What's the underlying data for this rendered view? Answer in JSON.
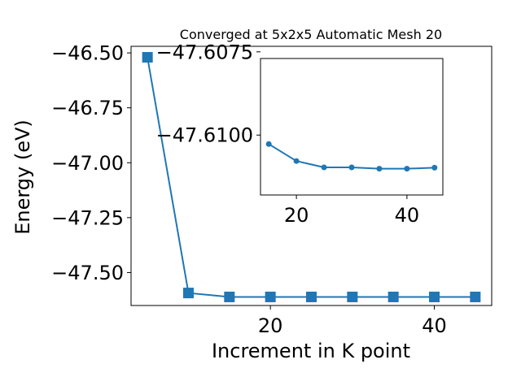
{
  "chart_data": [
    {
      "type": "line",
      "title": "Converged at 5x2x5 Automatic Mesh 20",
      "xlabel": "Increment in K point",
      "ylabel": "Energy (eV)",
      "x": [
        5,
        10,
        15,
        20,
        25,
        30,
        35,
        40,
        45
      ],
      "y": [
        -46.52,
        -47.593,
        -47.611,
        -47.611,
        -47.611,
        -47.611,
        -47.611,
        -47.611,
        -47.611
      ],
      "xlim": [
        3,
        47
      ],
      "ylim": [
        -47.65,
        -46.47
      ],
      "xticks": [
        20,
        40
      ],
      "yticks": [
        -46.5,
        -46.75,
        -47.0,
        -47.25,
        -47.5
      ],
      "ytick_labels": [
        "−46.50",
        "−46.75",
        "−47.00",
        "−47.25",
        "−47.50"
      ],
      "marker": "square",
      "color": "#1f77b4",
      "grid": false
    },
    {
      "type": "line",
      "role": "inset",
      "x": [
        15,
        20,
        25,
        30,
        35,
        40,
        45
      ],
      "y": [
        -47.61027,
        -47.61078,
        -47.61097,
        -47.61097,
        -47.61101,
        -47.61101,
        -47.61098
      ],
      "xlim": [
        13.5,
        46.5
      ],
      "ylim": [
        -47.6118,
        -47.6077
      ],
      "xticks": [
        20,
        40
      ],
      "yticks": [
        -47.61,
        -47.6075
      ],
      "ytick_labels": [
        "−47.6100",
        "−47.6075"
      ],
      "marker": "circle",
      "color": "#1f77b4",
      "grid": false
    }
  ]
}
